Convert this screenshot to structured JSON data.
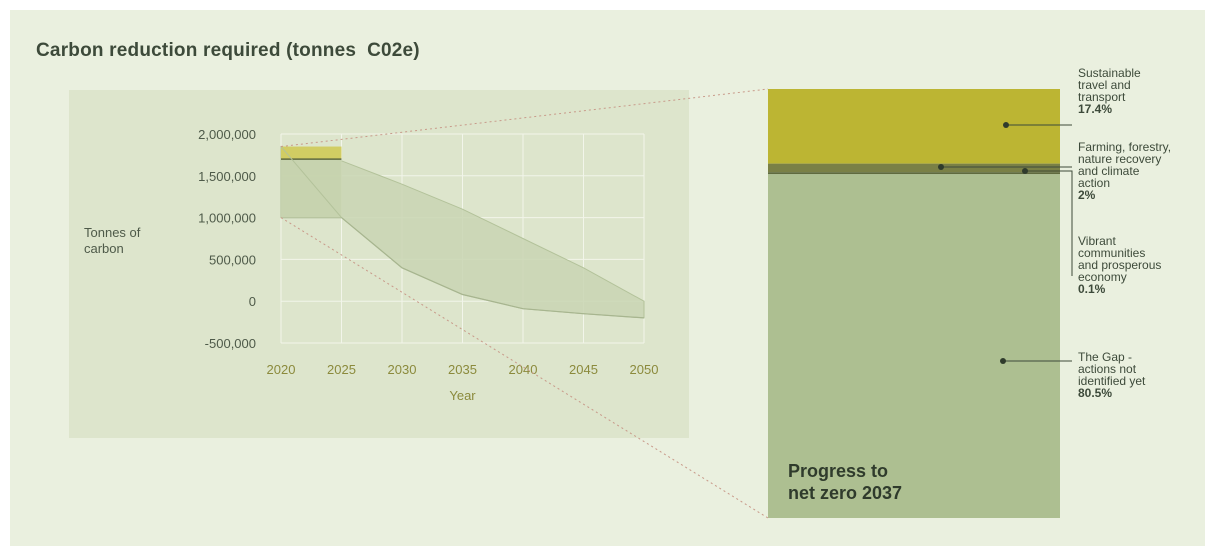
{
  "title": "Carbon reduction required (tonnes  C02e)",
  "colors": {
    "background": "#eaf0df",
    "panel": "#dde5cc",
    "gap": "#adbf91",
    "travel": "#bcb533",
    "farming": "#7a8046",
    "communities": "#5f6a3e",
    "trajectory": "#c9d5b3",
    "axis_text": "#4e5a49",
    "tick_text": "#8b8a3c"
  },
  "chart_data": [
    {
      "type": "area",
      "ylabel": [
        "Tonnes of",
        "carbon"
      ],
      "xlabel": "Year",
      "x_ticks": [
        "2020",
        "2025",
        "2030",
        "2035",
        "2040",
        "2045",
        "2050"
      ],
      "y_ticks": [
        "2,000,000",
        "1,500,000",
        "1,000,000",
        "500,000",
        "0",
        "-500,000"
      ],
      "xlim": [
        2020,
        2050
      ],
      "ylim": [
        -500000,
        2000000
      ],
      "grid": true,
      "upper_bound": {
        "x": [
          2020,
          2025,
          2030,
          2035,
          2040,
          2045,
          2050
        ],
        "y": [
          1850000,
          1680000,
          1400000,
          1100000,
          750000,
          400000,
          0
        ]
      },
      "lower_bound": {
        "x": [
          2020,
          2025,
          2030,
          2035,
          2040,
          2045,
          2050
        ],
        "y": [
          1000000,
          1000000,
          400000,
          80000,
          -90000,
          -150000,
          -200000
        ]
      },
      "highlight_box": {
        "x_range": [
          2020,
          2025
        ],
        "y_range": [
          1000000,
          1850000
        ],
        "split_y": 1700000
      }
    },
    {
      "type": "bar",
      "stacked": true,
      "label": [
        "Progress to",
        "net zero 2037"
      ],
      "segments": [
        {
          "name": [
            "Sustainable",
            "travel and",
            "transport"
          ],
          "percent_label": "17.4%",
          "value": 17.4,
          "color_key": "travel"
        },
        {
          "name": [
            "Farming, forestry,",
            "nature recovery",
            "and climate",
            "action"
          ],
          "percent_label": "2%",
          "value": 2.0,
          "color_key": "farming"
        },
        {
          "name": [
            "Vibrant",
            "communities",
            "and prosperous",
            "economy"
          ],
          "percent_label": "0.1%",
          "value": 0.1,
          "color_key": "communities"
        },
        {
          "name": [
            "The Gap -",
            "actions not",
            "identified yet"
          ],
          "percent_label": "80.5%",
          "value": 80.5,
          "color_key": "gap"
        }
      ]
    }
  ]
}
